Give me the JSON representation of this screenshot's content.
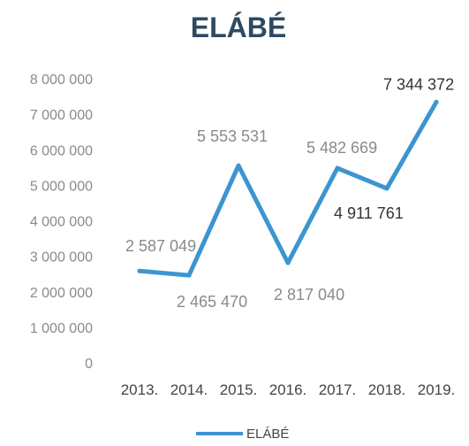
{
  "chart_data": {
    "type": "line",
    "title": "ELÁBÉ",
    "xlabel": "",
    "ylabel": "",
    "categories": [
      "2013.",
      "2014.",
      "2015.",
      "2016.",
      "2017.",
      "2018.",
      "2019."
    ],
    "series": [
      {
        "name": "ELÁBÉ",
        "values": [
          2587049,
          2465470,
          5553531,
          2817040,
          5482669,
          4911761,
          7344372
        ],
        "labels": [
          "2 587 049",
          "2 465 470",
          "5 553 531",
          "2 817 040",
          "5 482 669",
          "4 911 761",
          "7 344 372"
        ]
      }
    ],
    "ylim": [
      0,
      8000000
    ],
    "yticks": [
      "0",
      "1 000 000",
      "2 000 000",
      "3 000 000",
      "4 000 000",
      "5 000 000",
      "6 000 000",
      "7 000 000",
      "8 000 000"
    ],
    "grid": false,
    "legend": "bottom",
    "colors": {
      "line": "#3d95d0",
      "title": "#2e4a63",
      "label_light": "#8a8a8a",
      "label_dark": "#333333"
    }
  }
}
